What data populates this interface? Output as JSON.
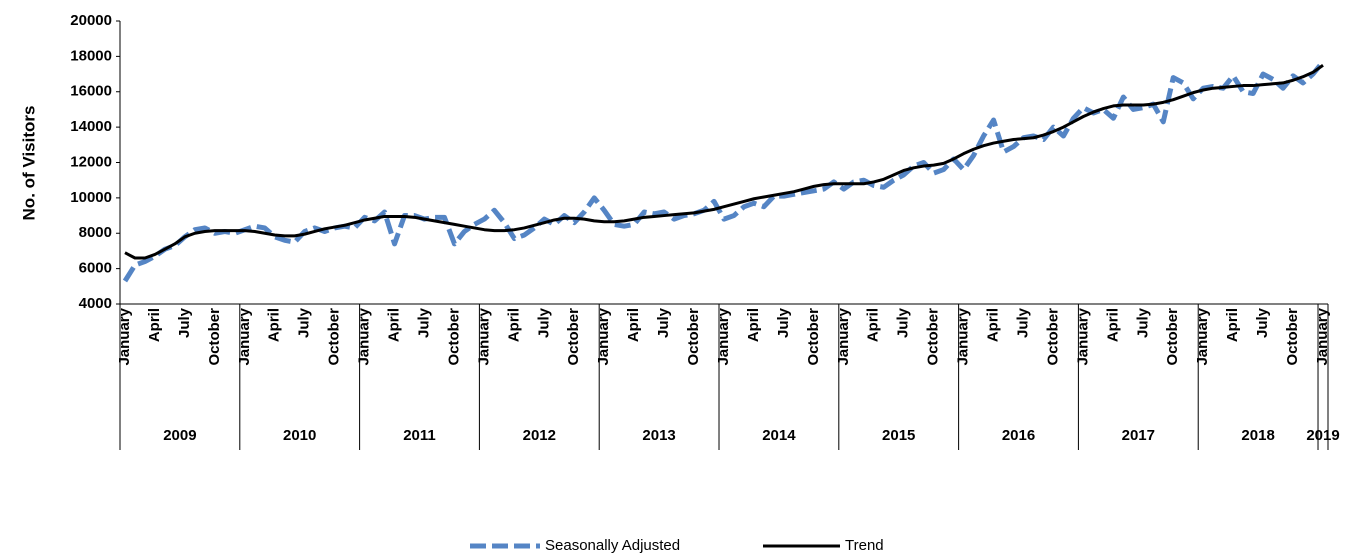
{
  "chart_data": {
    "type": "line",
    "ylabel": "No. of Visitors",
    "categories": [
      "January",
      null,
      null,
      "April",
      null,
      null,
      "July",
      null,
      null,
      "October",
      null,
      null,
      "January",
      null,
      null,
      "April",
      null,
      null,
      "July",
      null,
      null,
      "October",
      null,
      null,
      "January",
      null,
      null,
      "April",
      null,
      null,
      "July",
      null,
      null,
      "October",
      null,
      null,
      "January",
      null,
      null,
      "April",
      null,
      null,
      "July",
      null,
      null,
      "October",
      null,
      null,
      "January",
      null,
      null,
      "April",
      null,
      null,
      "July",
      null,
      null,
      "October",
      null,
      null,
      "January",
      null,
      null,
      "April",
      null,
      null,
      "July",
      null,
      null,
      "October",
      null,
      null,
      "January",
      null,
      null,
      "April",
      null,
      null,
      "July",
      null,
      null,
      "October",
      null,
      null,
      "January",
      null,
      null,
      "April",
      null,
      null,
      "July",
      null,
      null,
      "October",
      null,
      null,
      "January",
      null,
      null,
      "April",
      null,
      null,
      "July",
      null,
      null,
      "October",
      null,
      null,
      "January",
      null,
      null,
      "April",
      null,
      null,
      "July",
      null,
      null,
      "October",
      null,
      null,
      "January"
    ],
    "years": [
      "2009",
      "2010",
      "2011",
      "2012",
      "2013",
      "2014",
      "2015",
      "2016",
      "2017",
      "2018",
      "2019"
    ],
    "series": [
      {
        "name": "Seasonally Adjusted",
        "color": "#5585c5",
        "dashed": true,
        "values": [
          5300,
          6200,
          6400,
          6700,
          7100,
          7300,
          7800,
          8200,
          8300,
          8000,
          8100,
          8000,
          8200,
          8400,
          8300,
          7800,
          7600,
          7500,
          8100,
          8300,
          8100,
          8300,
          8400,
          8300,
          8900,
          8700,
          9200,
          7400,
          9000,
          9000,
          8800,
          8900,
          8900,
          7400,
          8100,
          8500,
          8800,
          9300,
          8600,
          7700,
          7900,
          8300,
          8800,
          8500,
          9000,
          8600,
          9200,
          10000,
          9300,
          8500,
          8400,
          8500,
          9200,
          9100,
          9200,
          8800,
          9000,
          9100,
          9300,
          9800,
          8800,
          9000,
          9500,
          9700,
          9500,
          10100,
          10100,
          10200,
          10300,
          10400,
          10500,
          10900,
          10500,
          10900,
          11000,
          10700,
          10600,
          11000,
          11300,
          11800,
          12000,
          11400,
          11600,
          12200,
          11600,
          12400,
          13500,
          14400,
          12600,
          12900,
          13400,
          13500,
          13300,
          14000,
          13500,
          14500,
          15100,
          14800,
          15000,
          14500,
          15700,
          15000,
          15100,
          15300,
          14300,
          16800,
          16500,
          15600,
          16200,
          16300,
          16200,
          16900,
          16000,
          15900,
          17000,
          16700,
          16200,
          16900,
          16500,
          17000,
          17700
        ]
      },
      {
        "name": "Trend",
        "color": "#000000",
        "dashed": false,
        "values": [
          6900,
          6600,
          6600,
          6800,
          7100,
          7400,
          7800,
          8000,
          8100,
          8150,
          8150,
          8150,
          8150,
          8100,
          8000,
          7900,
          7850,
          7850,
          7950,
          8100,
          8250,
          8350,
          8450,
          8600,
          8750,
          8850,
          8950,
          8950,
          8950,
          8900,
          8800,
          8700,
          8600,
          8500,
          8400,
          8300,
          8200,
          8150,
          8150,
          8200,
          8300,
          8450,
          8600,
          8750,
          8850,
          8850,
          8800,
          8700,
          8650,
          8650,
          8700,
          8800,
          8900,
          8950,
          9000,
          9050,
          9100,
          9150,
          9250,
          9350,
          9500,
          9650,
          9800,
          9950,
          10050,
          10150,
          10250,
          10350,
          10500,
          10650,
          10750,
          10800,
          10800,
          10800,
          10800,
          10900,
          11050,
          11300,
          11550,
          11700,
          11800,
          11850,
          11950,
          12200,
          12500,
          12750,
          12950,
          13100,
          13200,
          13300,
          13350,
          13400,
          13550,
          13750,
          14000,
          14300,
          14600,
          14850,
          15050,
          15200,
          15250,
          15250,
          15250,
          15300,
          15400,
          15550,
          15750,
          15950,
          16100,
          16200,
          16250,
          16300,
          16350,
          16350,
          16400,
          16450,
          16500,
          16650,
          16850,
          17100,
          17500
        ]
      }
    ],
    "ylim": [
      4000,
      20000
    ],
    "yticks": [
      4000,
      6000,
      8000,
      10000,
      12000,
      14000,
      16000,
      18000,
      20000
    ],
    "grid": false,
    "legend": "bottom"
  }
}
